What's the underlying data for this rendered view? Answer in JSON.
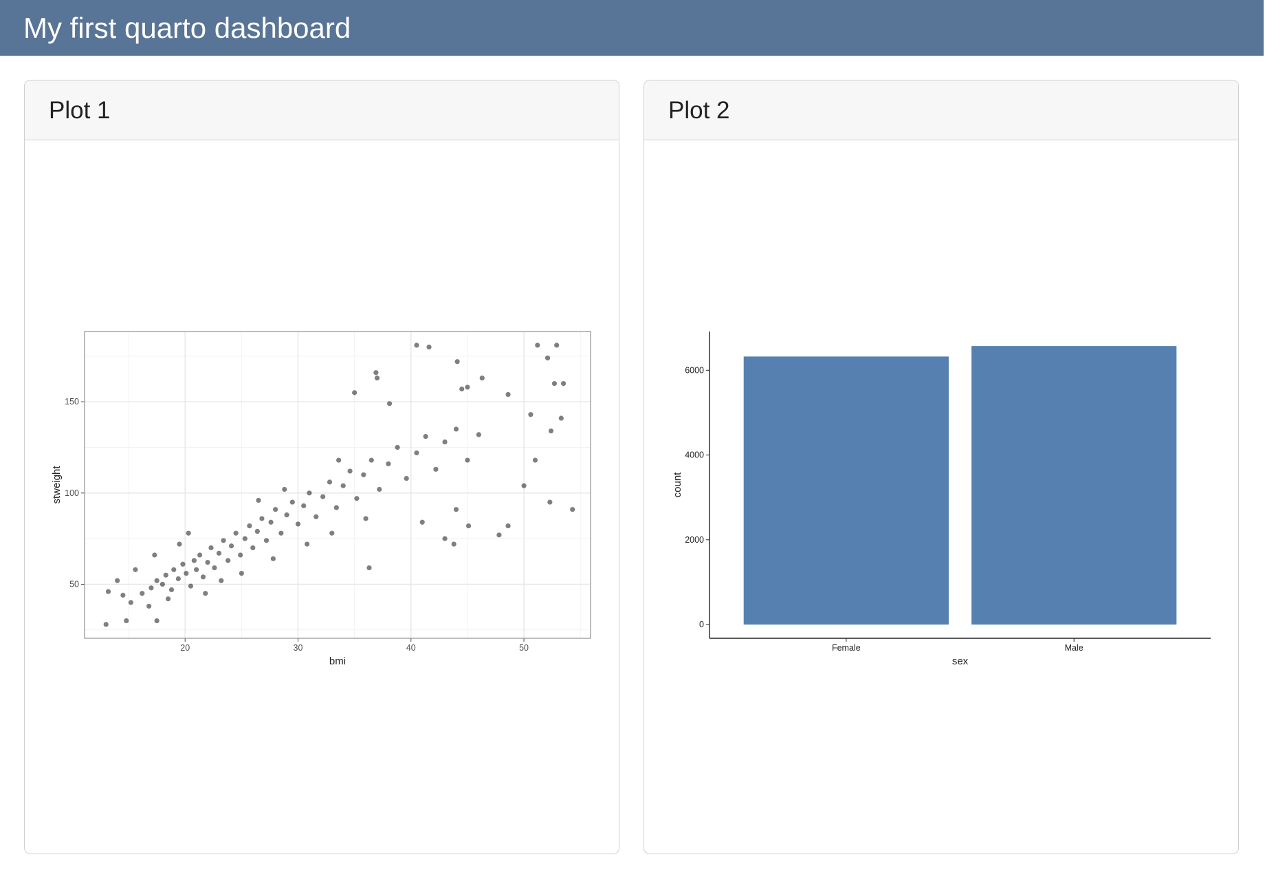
{
  "header": {
    "title": "My first quarto dashboard"
  },
  "chart_data": [
    {
      "type": "scatter",
      "title": "Plot 1",
      "xlabel": "bmi",
      "ylabel": "stweight",
      "color": "#000000",
      "alpha": 0.5,
      "grid": true,
      "minor_grid": true,
      "xlim": [
        11.1,
        55.9
      ],
      "xticks": [
        20,
        30,
        40,
        50
      ],
      "ylim": [
        20.4,
        188.5
      ],
      "yticks": [
        50,
        100,
        150
      ],
      "x": [
        16.2,
        17.0,
        17.5,
        18.0,
        18.3,
        18.8,
        19.0,
        19.4,
        19.8,
        20.1,
        20.5,
        20.8,
        21.0,
        21.3,
        21.6,
        22.0,
        22.3,
        22.6,
        23.0,
        23.4,
        23.8,
        24.1,
        24.5,
        24.9,
        25.3,
        25.7,
        26.0,
        26.4,
        26.8,
        27.2,
        27.6,
        28.0,
        28.5,
        29.0,
        29.5,
        30.0,
        30.5,
        31.0,
        31.6,
        32.2,
        32.8,
        33.4,
        34.0,
        34.6,
        35.2,
        35.8,
        36.5,
        37.2,
        38.0,
        38.8,
        39.6,
        40.5,
        41.3,
        42.2,
        43.0,
        44.0,
        45.0,
        46.0,
        14.0,
        14.5,
        15.2,
        15.6,
        16.8,
        17.3,
        18.5,
        19.5,
        20.3,
        21.8,
        23.2,
        25.0,
        26.5,
        27.8,
        28.8,
        30.8,
        33.0,
        33.6,
        36.0,
        13.0,
        14.8,
        13.2,
        17.5,
        35.0,
        36.9,
        37.0,
        38.1,
        40.5,
        41.6,
        44.1,
        44.5,
        45.0,
        46.3,
        48.6,
        51.2,
        52.1,
        52.9,
        52.7,
        53.5,
        53.3,
        52.4,
        50.6,
        51.0,
        50.0,
        52.3,
        54.3,
        48.6,
        47.8,
        43.8,
        43.0,
        36.3,
        45.1,
        44.0,
        41.0
      ],
      "y": [
        45,
        48,
        52,
        50,
        55,
        47,
        58,
        53,
        61,
        56,
        49,
        63,
        58,
        66,
        54,
        62,
        70,
        59,
        67,
        74,
        63,
        71,
        78,
        66,
        75,
        82,
        70,
        79,
        86,
        74,
        84,
        91,
        78,
        88,
        95,
        83,
        93,
        100,
        87,
        98,
        106,
        92,
        104,
        112,
        97,
        110,
        118,
        102,
        116,
        125,
        108,
        122,
        131,
        113,
        128,
        135,
        118,
        132,
        52,
        44,
        40,
        58,
        38,
        66,
        42,
        72,
        78,
        45,
        52,
        56,
        96,
        64,
        102,
        72,
        78,
        118,
        86,
        28,
        30,
        46,
        30,
        155,
        166,
        163,
        149,
        181,
        180,
        172,
        157,
        158,
        163,
        154,
        181,
        174,
        181,
        160,
        160,
        141,
        134,
        143,
        118,
        104,
        95,
        91,
        82,
        77,
        72,
        75,
        59,
        82,
        91,
        84
      ]
    },
    {
      "type": "bar",
      "title": "Plot 2",
      "xlabel": "sex",
      "ylabel": "count",
      "color": "#5580b0",
      "grid": false,
      "categories": [
        "Female",
        "Male"
      ],
      "values": [
        6324,
        6571
      ],
      "ylim": [
        -324,
        6914
      ],
      "yticks": [
        0,
        2000,
        4000,
        6000
      ]
    }
  ]
}
